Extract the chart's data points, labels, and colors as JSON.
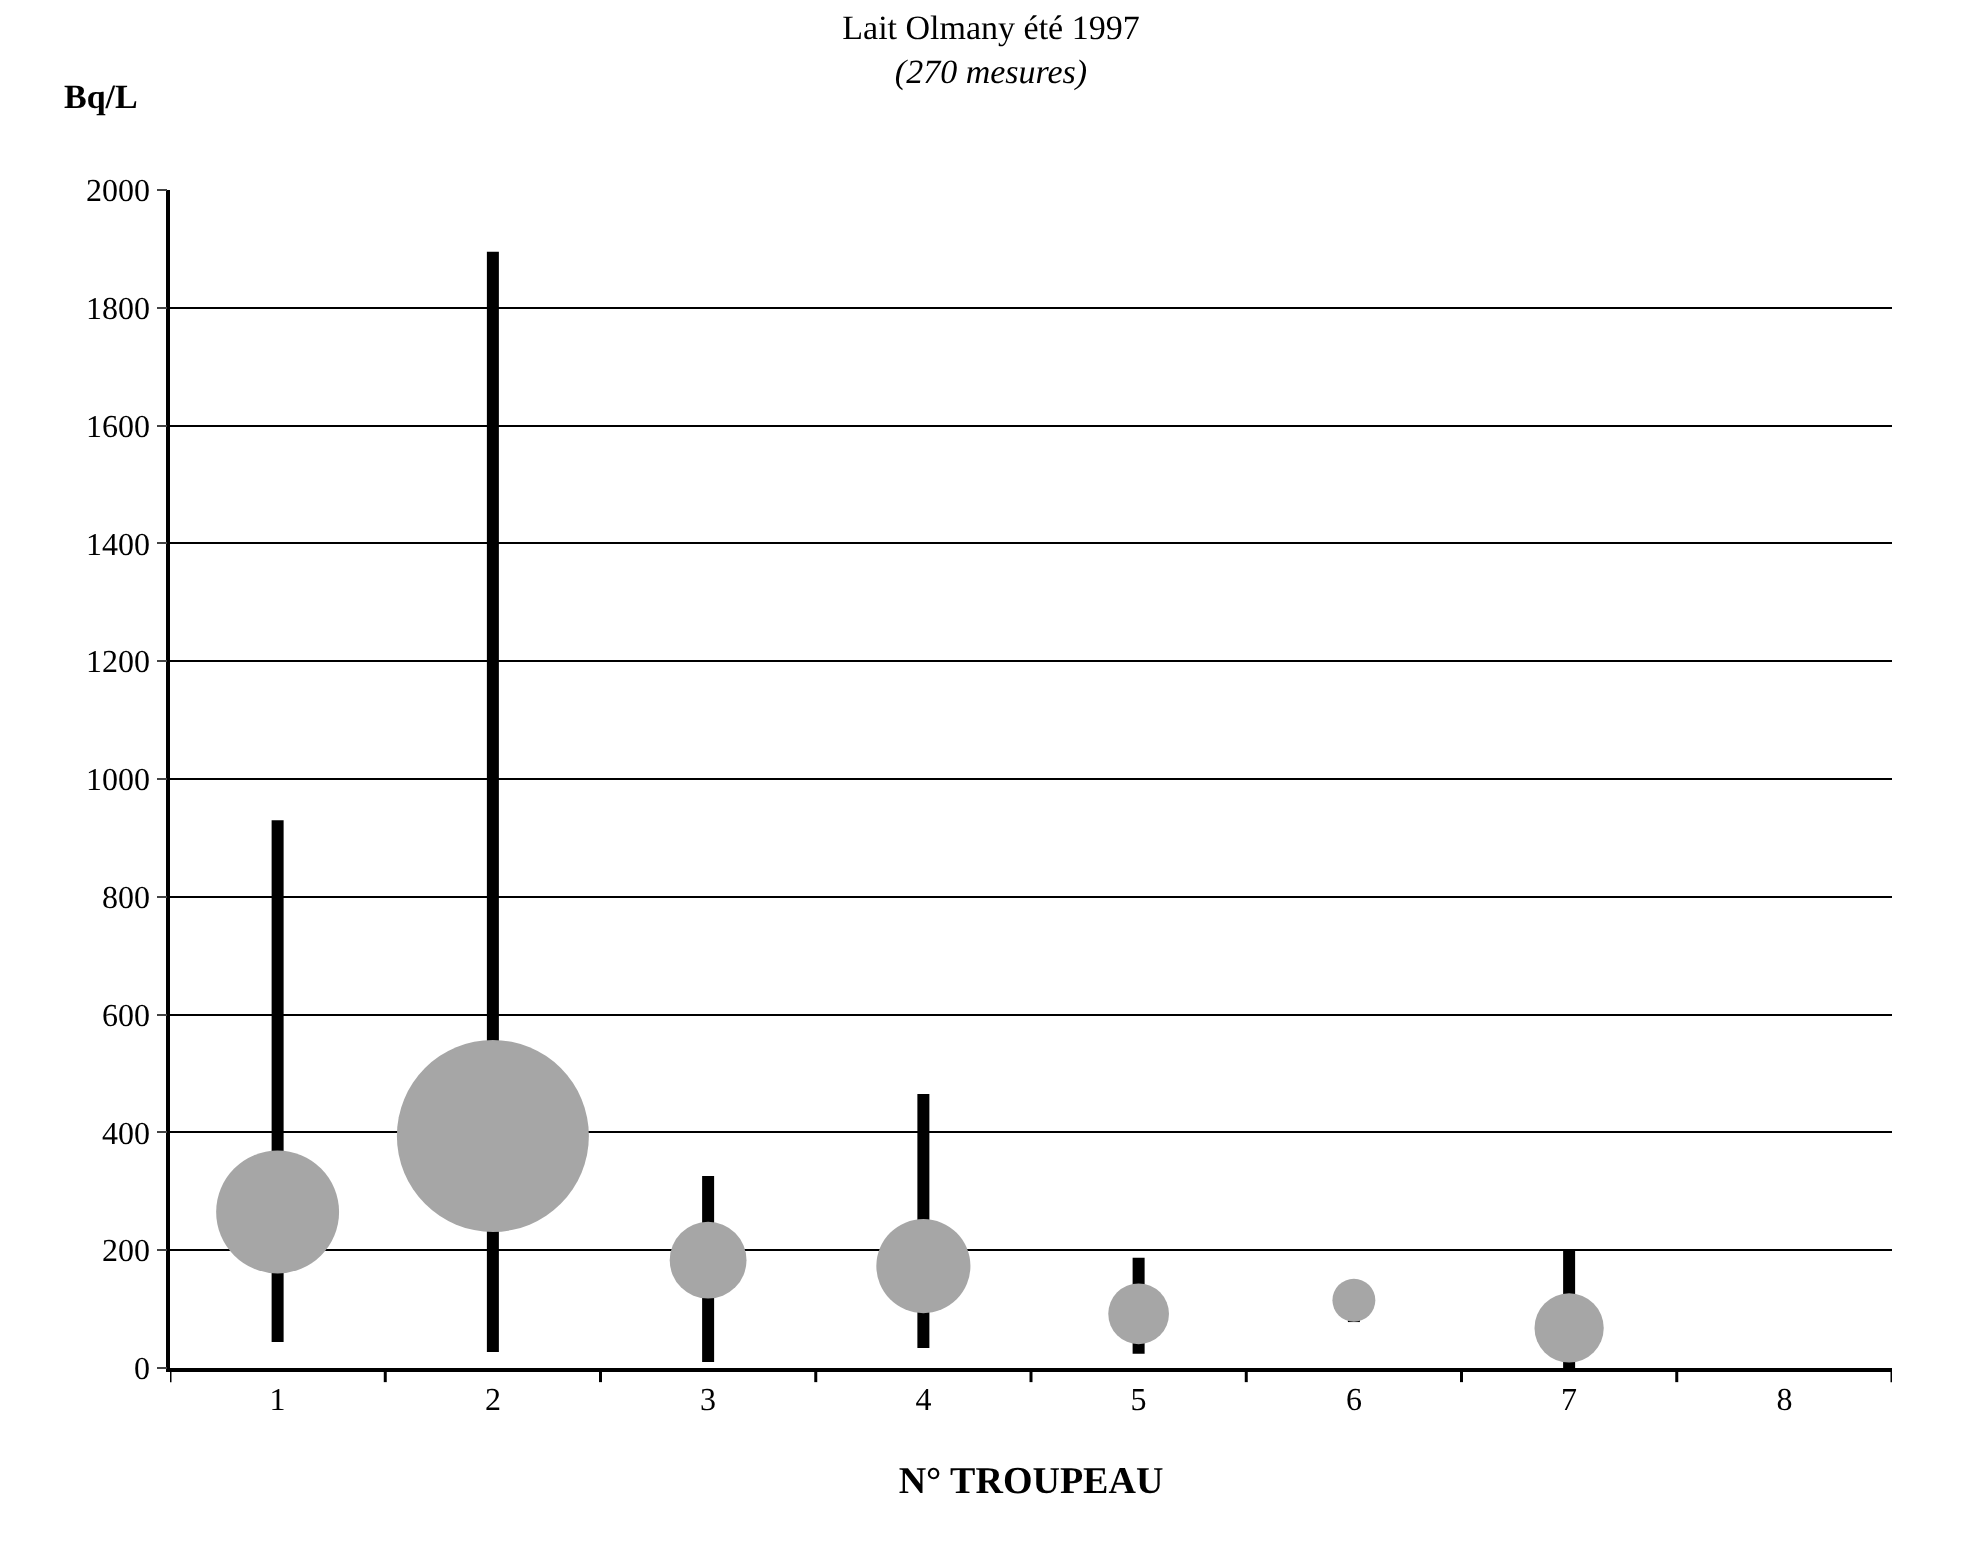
{
  "chart_data": {
    "type": "bubble",
    "title": "Lait Olmany été 1997",
    "subtitle": "(270 mesures)",
    "xlabel": "N° TROUPEAU",
    "ylabel": "Bq/L",
    "categories": [
      "1",
      "2",
      "3",
      "4",
      "5",
      "6",
      "7",
      "8"
    ],
    "series": [
      {
        "color": "#a6a6a6",
        "values": [
          265,
          394,
          183,
          173,
          92,
          115,
          68,
          null
        ],
        "sizes": [
          0.41,
          1,
          0.16,
          0.24,
          0.1,
          0.05,
          0.13,
          null
        ],
        "errors": [
          [
            44,
            930
          ],
          [
            27,
            1895
          ],
          [
            10,
            326
          ],
          [
            34,
            465
          ],
          [
            24,
            187
          ],
          [
            78,
            115
          ],
          [
            0,
            200
          ],
          null
        ]
      }
    ],
    "ylim": [
      0,
      2000
    ],
    "yticks": [
      0,
      200,
      400,
      600,
      800,
      1000,
      1200,
      1400,
      1600,
      1800,
      2000
    ],
    "grid": "y"
  }
}
